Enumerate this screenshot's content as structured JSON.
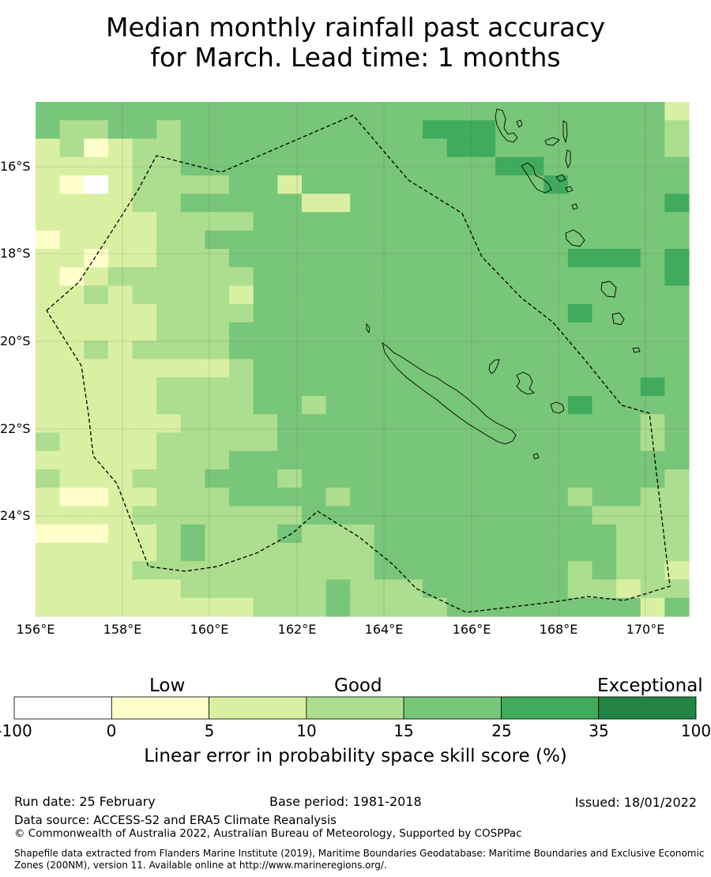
{
  "title": {
    "line1": "Median monthly rainfall past accuracy",
    "line2": "for March. Lead time: 1 months"
  },
  "map": {
    "lat_labels": [
      "16°S",
      "18°S",
      "20°S",
      "22°S",
      "24°S"
    ],
    "lon_labels": [
      "156°E",
      "158°E",
      "160°E",
      "162°E",
      "164°E",
      "166°E",
      "168°E",
      "170°E"
    ],
    "lon_range": [
      156,
      171
    ],
    "lat_range": [
      -14.5,
      -26.3
    ]
  },
  "colorbar": {
    "categories": [
      "Low",
      "Good",
      "Exceptional"
    ],
    "ticks": [
      "-100",
      "0",
      "5",
      "10",
      "15",
      "25",
      "35",
      "100"
    ],
    "colors": [
      "#ffffff",
      "#ffffcc",
      "#d9f0a3",
      "#addd8e",
      "#78c679",
      "#41ab5d",
      "#238443"
    ],
    "title": "Linear error in probability space skill score (%)"
  },
  "footer": {
    "run_date": "Run date: 25 February",
    "base_period": "Base period: 1981-2018",
    "issued": "Issued: 18/01/2022",
    "data_source": "Data source: ACCESS-S2 and ERA5 Climate Reanalysis",
    "copyright": "© Commonwealth of Australia 2022, Australian Bureau of Meteorology, Supported by COSPPac",
    "shapefile": "Shapefile data extracted from Flanders Marine Institute (2019), Maritime Boundaries Geodatabase: Maritime Boundaries and Exclusive Economic Zones (200NM), version 11. Available online at http://www.marineregions.org/."
  }
}
